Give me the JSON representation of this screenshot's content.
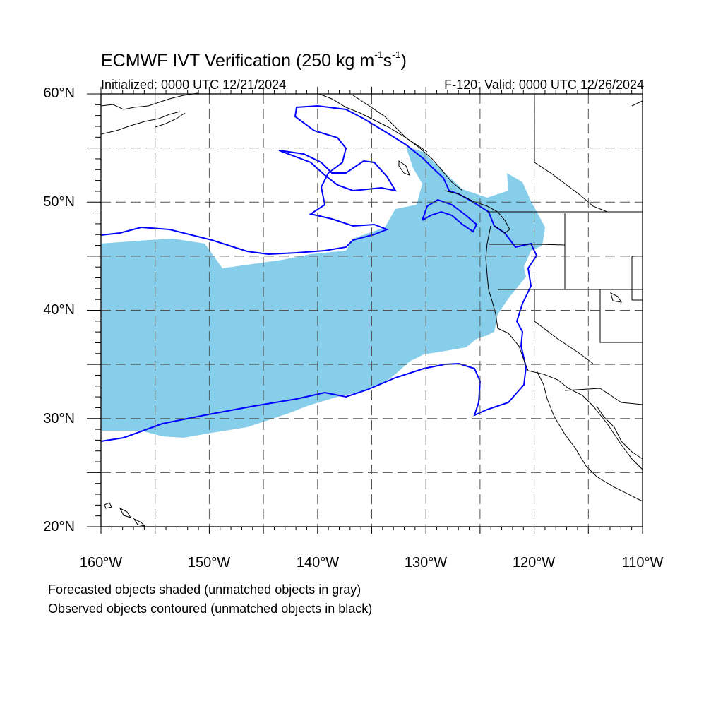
{
  "title": {
    "prefix": "ECMWF IVT Verification (250 kg m",
    "exp1": "-1",
    "mid": "s",
    "exp2": "-1",
    "suffix": ")"
  },
  "initialized": "Initialized: 0000 UTC 12/21/2024",
  "valid": "F-120: Valid: 0000 UTC 12/26/2024",
  "lat_labels": [
    "60°N",
    "50°N",
    "40°N",
    "30°N",
    "20°N"
  ],
  "lon_labels": [
    "160°W",
    "150°W",
    "140°W",
    "130°W",
    "120°W",
    "110°W"
  ],
  "notes": {
    "line1": "Forecasted objects shaded (unmatched objects in gray)",
    "line2": "Observed objects contoured (unmatched objects in black)"
  },
  "colors": {
    "forecast_fill": "#87ceeb",
    "observed_contour": "#0000ff",
    "coastline": "#000000",
    "grid": "#555555"
  },
  "map_extent": {
    "lon_min": -160,
    "lon_max": -110,
    "lat_min": 20,
    "lat_max": 60
  }
}
